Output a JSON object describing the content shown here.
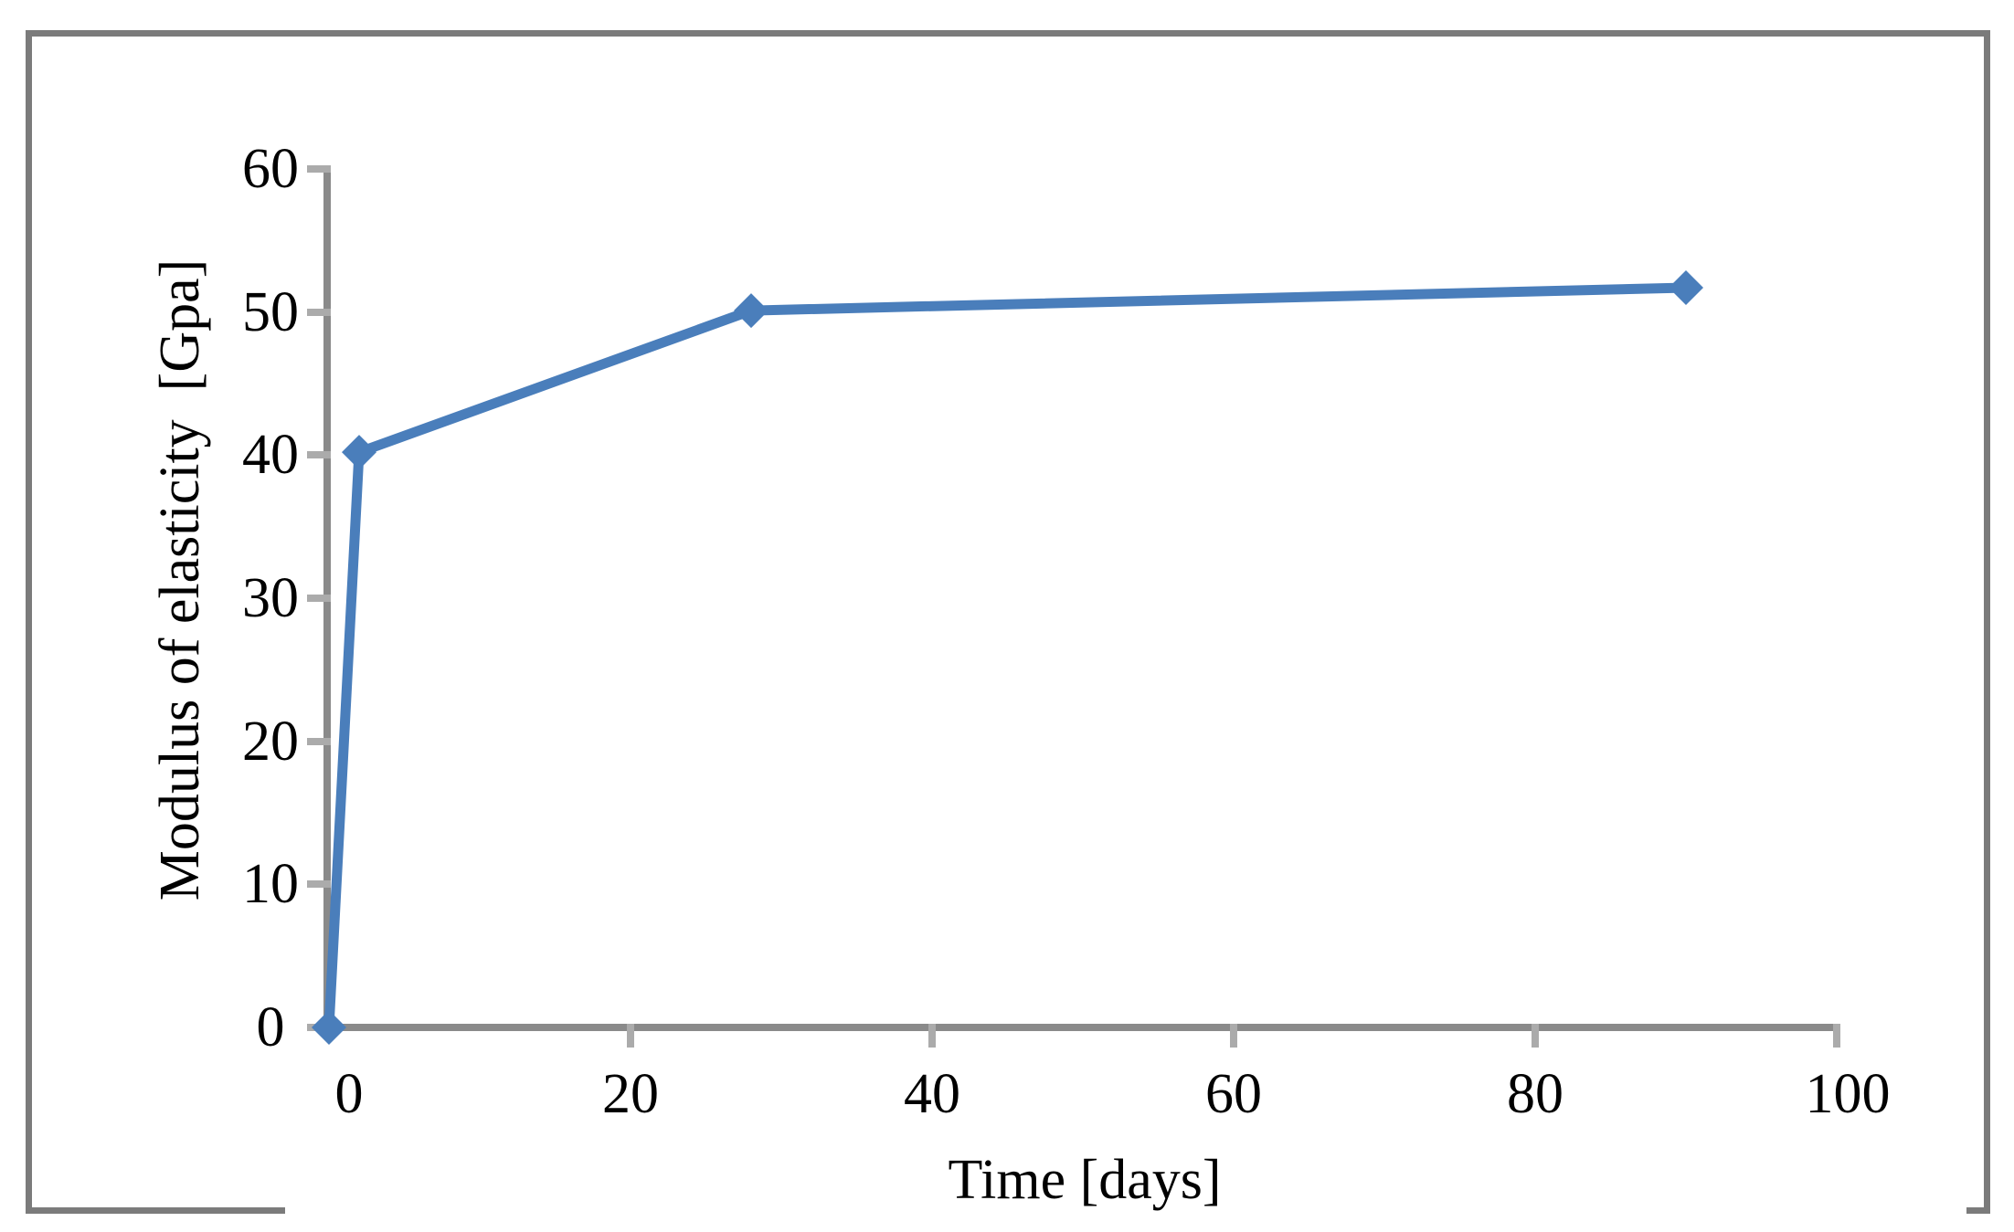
{
  "figure": {
    "xlabel": "Time [days]",
    "ylabel": "Modulus of elasticity  [Gpa]"
  },
  "chart_data": {
    "type": "line",
    "title": "",
    "xlabel": "Time [days]",
    "ylabel": "Modulus of elasticity  [Gpa]",
    "x": [
      0,
      2,
      28,
      90
    ],
    "series": [
      {
        "name": "Modulus of elasticity",
        "values": [
          0,
          40.2,
          50.1,
          51.7
        ]
      }
    ],
    "x_ticks": [
      0,
      20,
      40,
      60,
      80,
      100
    ],
    "y_ticks": [
      0,
      10,
      20,
      30,
      40,
      50,
      60
    ],
    "xlim": [
      0,
      100
    ],
    "ylim": [
      0,
      60
    ],
    "grid": false,
    "legend": false,
    "marker": "diamond",
    "colors": {
      "line": "#4a7ebb",
      "axis": "#8a8a8a",
      "tick": "#ababab",
      "frame": "#7b7b7b",
      "text": "#000000",
      "background": "#ffffff"
    }
  }
}
